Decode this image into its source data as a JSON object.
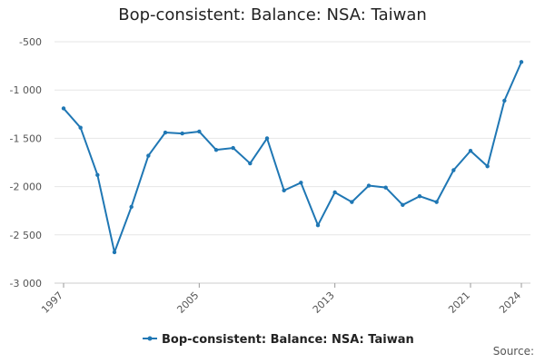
{
  "title": "Bop-consistent: Balance: NSA: Taiwan",
  "source_label": "Source:",
  "chart_data": {
    "type": "line",
    "title": "Bop-consistent: Balance: NSA: Taiwan",
    "xlabel": "",
    "ylabel": "",
    "x": [
      1997,
      1998,
      1999,
      2000,
      2001,
      2002,
      2003,
      2004,
      2005,
      2006,
      2007,
      2008,
      2009,
      2010,
      2011,
      2012,
      2013,
      2014,
      2015,
      2016,
      2017,
      2018,
      2019,
      2020,
      2021,
      2022,
      2023,
      2024
    ],
    "series": [
      {
        "name": "Bop-consistent: Balance: NSA: Taiwan",
        "color": "#1f77b4",
        "values": [
          -1190,
          -1390,
          -1880,
          -2680,
          -2210,
          -1680,
          -1440,
          -1450,
          -1430,
          -1620,
          -1600,
          -1760,
          -1500,
          -2040,
          -1960,
          -2400,
          -2060,
          -2160,
          -1990,
          -2010,
          -2190,
          -2100,
          -2160,
          -1830,
          -1630,
          -1790,
          -1110,
          -710
        ]
      }
    ],
    "ylim": [
      -3000,
      -500
    ],
    "yticks": [
      -500,
      -1000,
      -1500,
      -2000,
      -2500,
      -3000
    ],
    "ytick_labels": [
      "-500",
      "-1 000",
      "-1 500",
      "-2 000",
      "-2 500",
      "-3 000"
    ],
    "xticks": [
      1997,
      2005,
      2013,
      2021,
      2024
    ],
    "xtick_labels": [
      "1997",
      "2005",
      "2013",
      "2021",
      "2024"
    ],
    "grid": true,
    "legend": "bottom-center"
  }
}
